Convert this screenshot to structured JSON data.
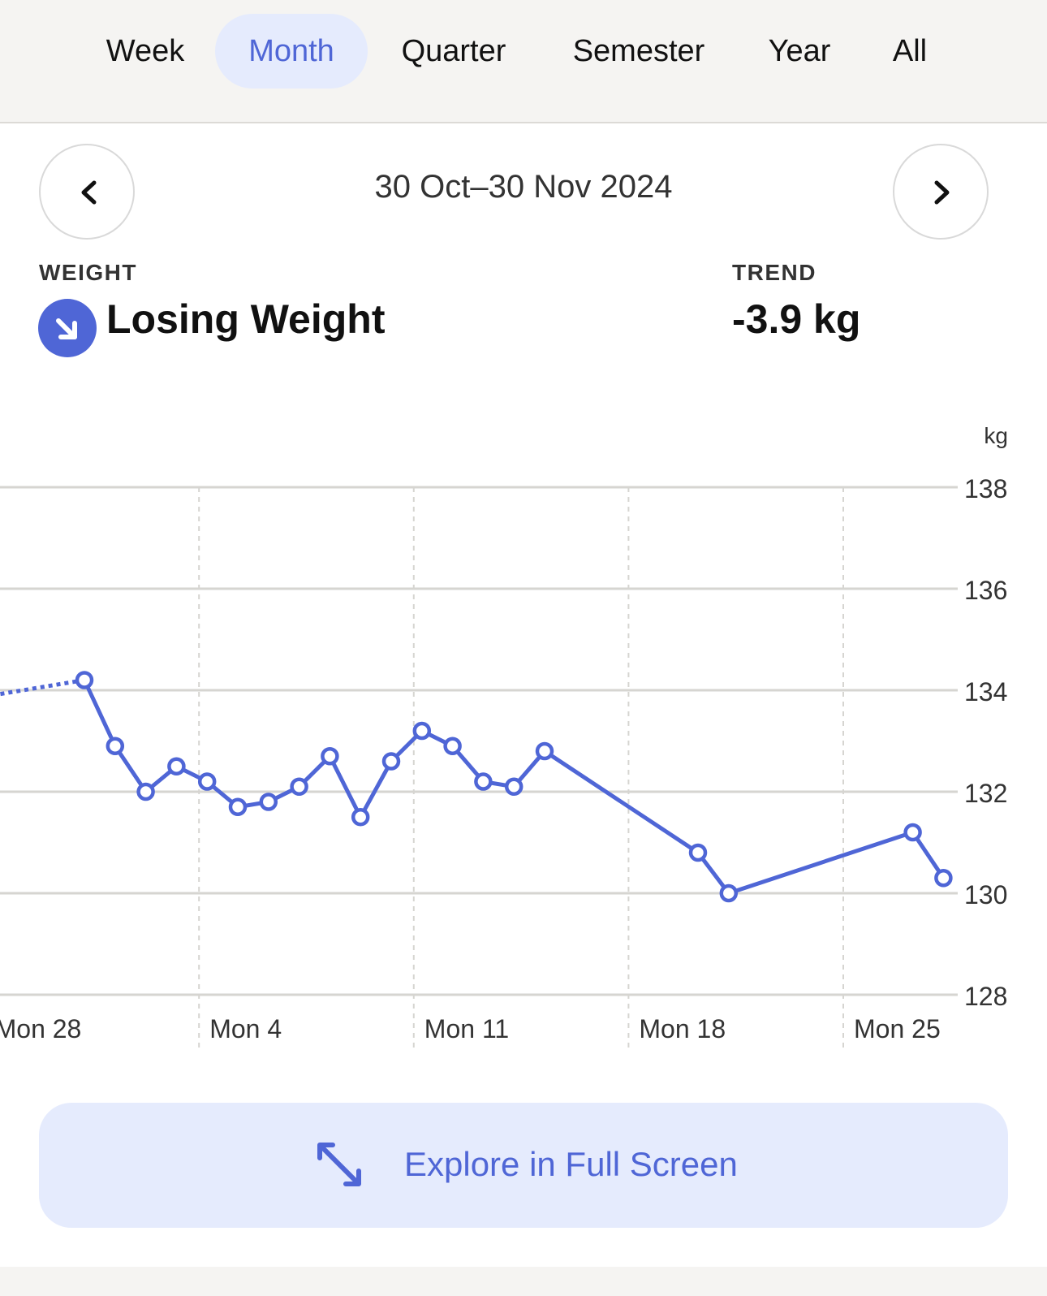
{
  "period_tabs": [
    {
      "label": "Week",
      "active": false
    },
    {
      "label": "Month",
      "active": true
    },
    {
      "label": "Quarter",
      "active": false
    },
    {
      "label": "Semester",
      "active": false
    },
    {
      "label": "Year",
      "active": false
    },
    {
      "label": "All",
      "active": false
    }
  ],
  "navigation": {
    "prev_icon": "chevron-left-icon",
    "next_icon": "chevron-right-icon",
    "date_range": "30 Oct–30 Nov 2024"
  },
  "weight": {
    "label": "WEIGHT",
    "status": "Losing Weight",
    "status_icon": "arrow-down-right-icon"
  },
  "trend": {
    "label": "TREND",
    "value": "-3.9 kg"
  },
  "colors": {
    "accent": "#4f66d6",
    "accent_bg": "#e5ebfd",
    "grid": "#d6d5d1",
    "topbar_bg": "#f5f4f2"
  },
  "chart_data": {
    "type": "line",
    "unit": "kg",
    "ylim": [
      128,
      138
    ],
    "yticks": [
      "138",
      "136",
      "134",
      "132",
      "130",
      "128"
    ],
    "xticks": [
      {
        "label": "Mon 28",
        "day": -3
      },
      {
        "label": "Mon 4",
        "day": 4
      },
      {
        "label": "Mon 11",
        "day": 11
      },
      {
        "label": "Mon 18",
        "day": 18
      },
      {
        "label": "Mon 25",
        "day": 25
      }
    ],
    "series": [
      {
        "points": [
          {
            "day": 0,
            "value": 134.2
          },
          {
            "day": 1,
            "value": 132.9
          },
          {
            "day": 2,
            "value": 132.0
          },
          {
            "day": 3,
            "value": 132.5
          },
          {
            "day": 4,
            "value": 132.2
          },
          {
            "day": 5,
            "value": 131.7
          },
          {
            "day": 6,
            "value": 131.8
          },
          {
            "day": 7,
            "value": 132.1
          },
          {
            "day": 8,
            "value": 132.7
          },
          {
            "day": 9,
            "value": 131.5
          },
          {
            "day": 10,
            "value": 132.6
          },
          {
            "day": 11,
            "value": 133.2
          },
          {
            "day": 12,
            "value": 132.9
          },
          {
            "day": 13,
            "value": 132.2
          },
          {
            "day": 14,
            "value": 132.1
          },
          {
            "day": 15,
            "value": 132.8
          },
          {
            "day": 20,
            "value": 130.8
          },
          {
            "day": 21,
            "value": 130.0
          },
          {
            "day": 27,
            "value": 131.2
          },
          {
            "day": 28,
            "value": 130.3
          }
        ],
        "previous": {
          "day": -3,
          "value": 133.9
        }
      }
    ]
  },
  "explore": {
    "label": "Explore in Full Screen",
    "icon": "expand-diagonal-icon"
  }
}
